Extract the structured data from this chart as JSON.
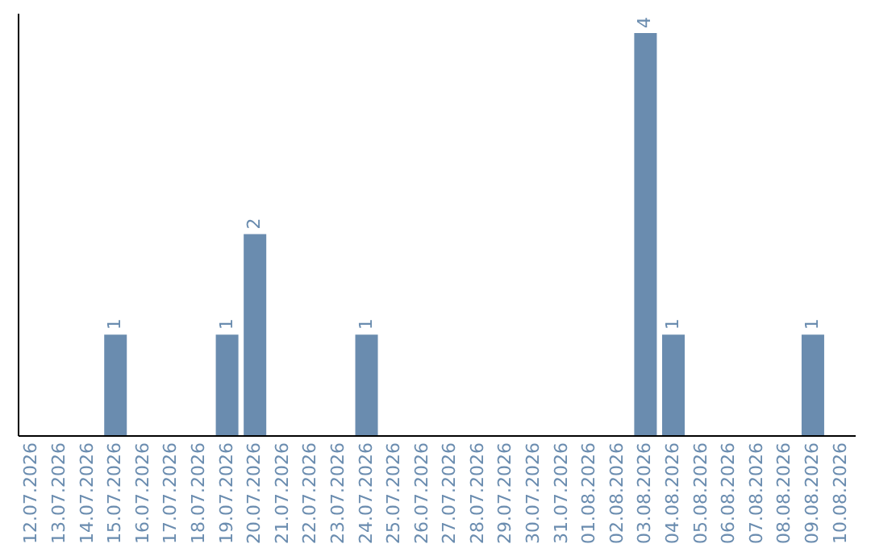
{
  "chart_data": {
    "type": "bar",
    "categories": [
      "12.07.2026",
      "13.07.2026",
      "14.07.2026",
      "15.07.2026",
      "16.07.2026",
      "17.07.2026",
      "18.07.2026",
      "19.07.2026",
      "20.07.2026",
      "21.07.2026",
      "22.07.2026",
      "23.07.2026",
      "24.07.2026",
      "25.07.2026",
      "26.07.2026",
      "27.07.2026",
      "28.07.2026",
      "29.07.2026",
      "30.07.2026",
      "31.07.2026",
      "01.08.2026",
      "02.08.2026",
      "03.08.2026",
      "04.08.2026",
      "05.08.2026",
      "06.08.2026",
      "07.08.2026",
      "08.08.2026",
      "09.08.2026",
      "10.08.2026"
    ],
    "values": [
      0,
      0,
      0,
      1,
      0,
      0,
      0,
      1,
      2,
      0,
      0,
      0,
      1,
      0,
      0,
      0,
      0,
      0,
      0,
      0,
      0,
      0,
      4,
      1,
      0,
      0,
      0,
      0,
      1,
      0
    ],
    "value_labels": [
      null,
      null,
      null,
      "1",
      null,
      null,
      null,
      "1",
      "2",
      null,
      null,
      null,
      "1",
      null,
      null,
      null,
      null,
      null,
      null,
      null,
      null,
      null,
      "4",
      "1",
      null,
      null,
      null,
      null,
      "1",
      null
    ],
    "color": "#6a8caf",
    "ylim": [
      0,
      4.2
    ]
  }
}
